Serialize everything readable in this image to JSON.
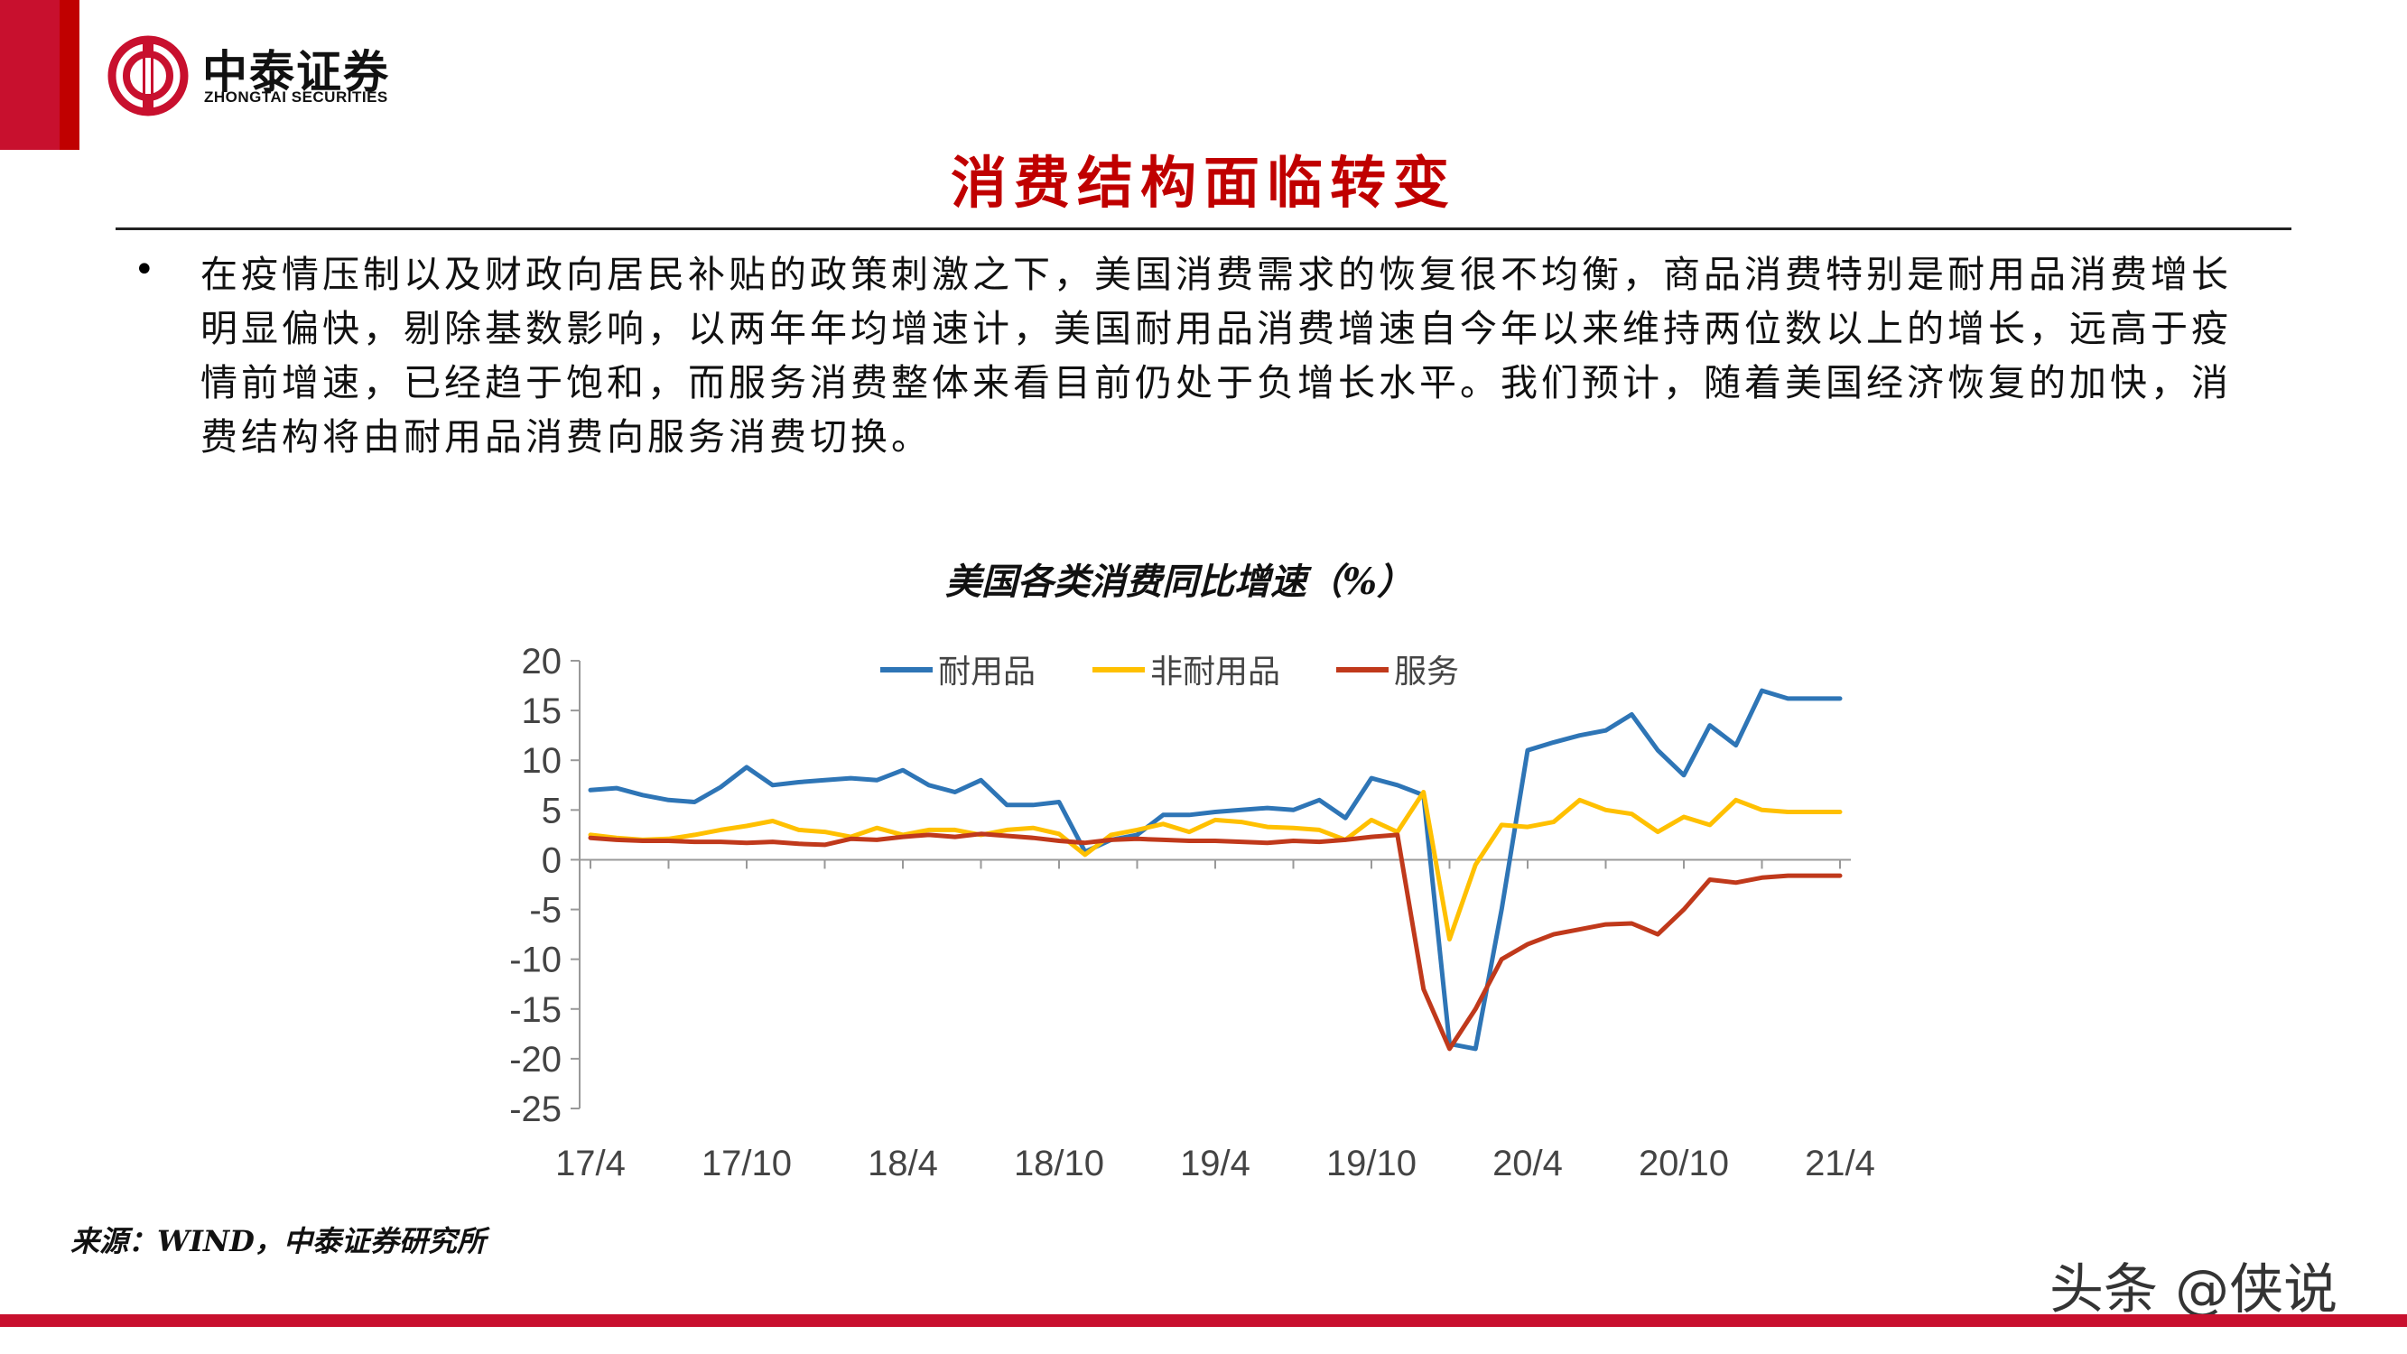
{
  "brand": {
    "name_cn": "中泰证券",
    "name_en": "ZHONGTAI SECURITIES",
    "color": "#c8102e"
  },
  "page": {
    "title": "消费结构面临转变",
    "bullet": "•",
    "body": "在疫情压制以及财政向居民补贴的政策刺激之下，美国消费需求的恢复很不均衡，商品消费特别是耐用品消费增长明显偏快，剔除基数影响，以两年年均增速计，美国耐用品消费增速自今年以来维持两位数以上的增长，远高于疫情前增速，已经趋于饱和，而服务消费整体来看目前仍处于负增长水平。我们预计，随着美国经济恢复的加快，消费结构将由耐用品消费向服务消费切换。",
    "source": "来源：WIND，中泰证券研究所",
    "watermark": "头条 @侠说"
  },
  "chart_data": {
    "type": "line",
    "title": "美国各类消费同比增速（%）",
    "xlabel": "",
    "ylabel": "",
    "ylim": [
      -25,
      20
    ],
    "yticks": [
      20,
      15,
      10,
      5,
      0,
      -5,
      -10,
      -15,
      -20,
      -25
    ],
    "xtick_labels": [
      "17/4",
      "17/10",
      "18/4",
      "18/10",
      "19/4",
      "19/10",
      "20/4",
      "20/10",
      "21/4"
    ],
    "x": [
      "17/4",
      "17/5",
      "17/6",
      "17/7",
      "17/8",
      "17/9",
      "17/10",
      "17/11",
      "17/12",
      "18/1",
      "18/2",
      "18/3",
      "18/4",
      "18/5",
      "18/6",
      "18/7",
      "18/8",
      "18/9",
      "18/10",
      "18/11",
      "18/12",
      "19/1",
      "19/2",
      "19/3",
      "19/4",
      "19/5",
      "19/6",
      "19/7",
      "19/8",
      "19/9",
      "19/10",
      "19/11",
      "19/12",
      "20/1",
      "20/2",
      "20/3",
      "20/4",
      "20/5",
      "20/6",
      "20/7",
      "20/8",
      "20/9",
      "20/10",
      "20/11",
      "20/12",
      "21/1",
      "21/2",
      "21/3",
      "21/4"
    ],
    "legend_position": "top",
    "grid": false,
    "series": [
      {
        "name": "耐用品",
        "color": "#2e75b6",
        "values": [
          7.0,
          7.2,
          6.5,
          6.0,
          5.8,
          7.3,
          9.3,
          7.5,
          7.8,
          8.0,
          8.2,
          8.0,
          9.0,
          7.5,
          6.8,
          8.0,
          5.5,
          5.5,
          5.8,
          0.8,
          2.0,
          2.5,
          4.5,
          4.5,
          4.8,
          5.0,
          5.2,
          5.0,
          6.0,
          4.2,
          8.2,
          7.5,
          6.5,
          -18.5,
          -19.0,
          -5.0,
          11.0,
          11.8,
          12.5,
          13.0,
          14.6,
          11.0,
          8.5,
          13.5,
          11.5,
          17.0,
          16.2,
          16.2,
          16.2
        ]
      },
      {
        "name": "非耐用品",
        "color": "#ffc000",
        "values": [
          2.5,
          2.2,
          2.0,
          2.1,
          2.5,
          3.0,
          3.4,
          3.9,
          3.0,
          2.8,
          2.3,
          3.2,
          2.5,
          3.0,
          3.0,
          2.5,
          3.0,
          3.2,
          2.6,
          0.5,
          2.5,
          3.0,
          3.6,
          2.8,
          4.0,
          3.8,
          3.3,
          3.2,
          3.0,
          2.0,
          4.0,
          2.8,
          6.8,
          -8.0,
          -0.5,
          3.5,
          3.3,
          3.8,
          6.0,
          5.0,
          4.6,
          2.8,
          4.3,
          3.5,
          6.0,
          5.0,
          4.8,
          4.8,
          4.8
        ]
      },
      {
        "name": "服务",
        "color": "#c0391b",
        "values": [
          2.2,
          2.0,
          1.9,
          1.9,
          1.8,
          1.8,
          1.7,
          1.8,
          1.6,
          1.5,
          2.1,
          2.0,
          2.3,
          2.5,
          2.3,
          2.6,
          2.4,
          2.2,
          1.9,
          1.7,
          2.0,
          2.1,
          2.0,
          1.9,
          1.9,
          1.8,
          1.7,
          1.9,
          1.8,
          2.0,
          2.3,
          2.5,
          -13.0,
          -19.0,
          -15.0,
          -10.0,
          -8.5,
          -7.5,
          -7.0,
          -6.5,
          -6.4,
          -7.5,
          -5.0,
          -2.0,
          -2.3,
          -1.8,
          -1.6,
          -1.6,
          -1.6
        ]
      }
    ]
  }
}
